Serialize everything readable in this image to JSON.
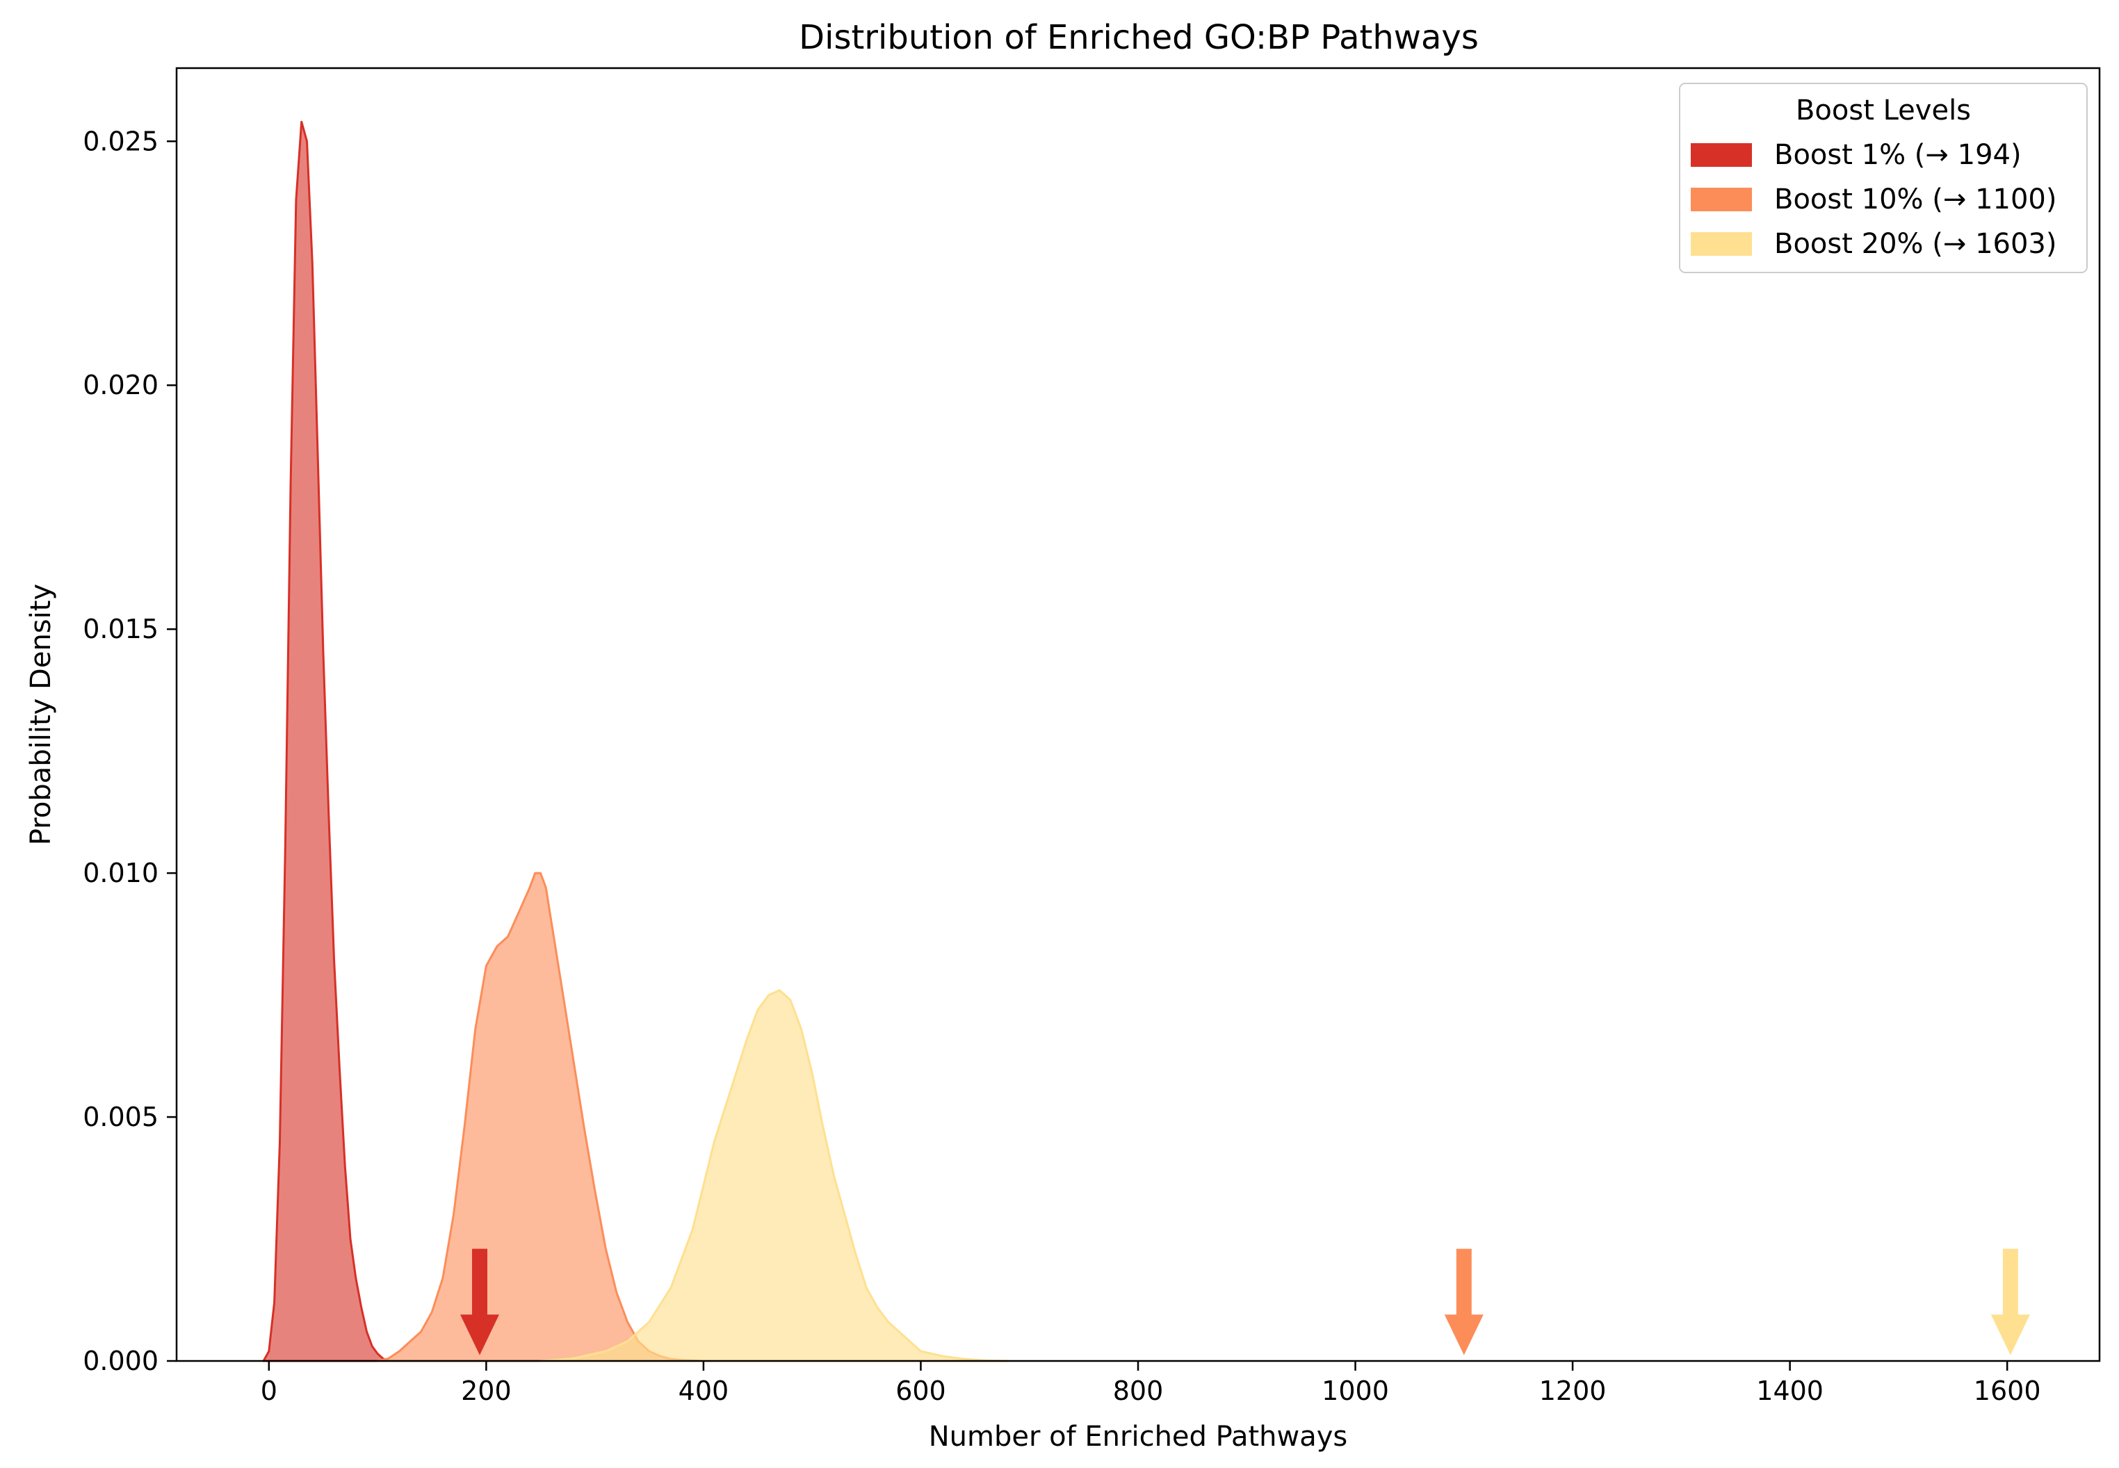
{
  "chart_data": {
    "type": "area",
    "title": "Distribution of Enriched GO:BP Pathways",
    "xlabel": "Number of Enriched Pathways",
    "ylabel": "Probability Density",
    "xlim": [
      -85,
      1685
    ],
    "ylim": [
      0,
      0.0265
    ],
    "x_ticks": [
      0,
      200,
      400,
      600,
      800,
      1000,
      1200,
      1400,
      1600
    ],
    "x_tick_labels": [
      "0",
      "200",
      "400",
      "600",
      "800",
      "1000",
      "1200",
      "1400",
      "1600"
    ],
    "y_ticks": [
      0,
      0.005,
      0.01,
      0.015,
      0.02,
      0.025
    ],
    "y_tick_labels": [
      "0.000",
      "0.005",
      "0.010",
      "0.015",
      "0.020",
      "0.025"
    ],
    "legend": {
      "title": "Boost Levels",
      "position": "upper right",
      "entries": [
        "Boost 1% (→ 194)",
        "Boost 10% (→ 1100)",
        "Boost 20% (→ 1603)"
      ]
    },
    "series": [
      {
        "name": "Boost 1% (→ 194)",
        "color": "#d73027",
        "fill_opacity": 0.6,
        "marker_x": 194,
        "x": [
          -5,
          0,
          5,
          10,
          15,
          20,
          25,
          30,
          35,
          40,
          45,
          50,
          55,
          60,
          65,
          70,
          75,
          80,
          85,
          90,
          95,
          100,
          105,
          110
        ],
        "y": [
          0,
          0.0002,
          0.0012,
          0.0045,
          0.0105,
          0.018,
          0.0238,
          0.0254,
          0.025,
          0.0225,
          0.0185,
          0.0145,
          0.0112,
          0.0082,
          0.006,
          0.004,
          0.0025,
          0.0017,
          0.0011,
          0.0006,
          0.0003,
          0.00015,
          5e-05,
          0
        ]
      },
      {
        "name": "Boost 10% (→ 1100)",
        "color": "#fc8d59",
        "fill_opacity": 0.6,
        "marker_x": 1100,
        "x": [
          100,
          110,
          120,
          130,
          140,
          150,
          160,
          170,
          180,
          190,
          200,
          210,
          220,
          230,
          240,
          245,
          250,
          255,
          260,
          270,
          280,
          290,
          300,
          310,
          320,
          330,
          340,
          350,
          360,
          370,
          380,
          390,
          400
        ],
        "y": [
          0,
          5e-05,
          0.0002,
          0.0004,
          0.0006,
          0.001,
          0.0017,
          0.003,
          0.0048,
          0.0068,
          0.0081,
          0.0085,
          0.0087,
          0.0092,
          0.0097,
          0.01,
          0.01,
          0.0097,
          0.009,
          0.0076,
          0.0062,
          0.0048,
          0.0035,
          0.0023,
          0.0014,
          0.0008,
          0.0004,
          0.0002,
          0.0001,
          4e-05,
          2e-05,
          1e-05,
          0
        ]
      },
      {
        "name": "Boost 20% (→ 1603)",
        "color": "#fee090",
        "fill_opacity": 0.65,
        "marker_x": 1603,
        "x": [
          250,
          280,
          310,
          330,
          350,
          370,
          390,
          400,
          410,
          420,
          430,
          440,
          450,
          460,
          470,
          480,
          490,
          500,
          510,
          520,
          530,
          540,
          550,
          560,
          570,
          580,
          590,
          600,
          620,
          640,
          660,
          680
        ],
        "y": [
          0,
          5e-05,
          0.0002,
          0.0004,
          0.0008,
          0.0015,
          0.0027,
          0.0036,
          0.0045,
          0.0052,
          0.0059,
          0.0066,
          0.0072,
          0.0075,
          0.0076,
          0.0074,
          0.0068,
          0.0059,
          0.0048,
          0.0038,
          0.003,
          0.0022,
          0.0015,
          0.0011,
          0.0008,
          0.0006,
          0.0004,
          0.0002,
          0.0001,
          4e-05,
          1e-05,
          0
        ]
      }
    ]
  }
}
